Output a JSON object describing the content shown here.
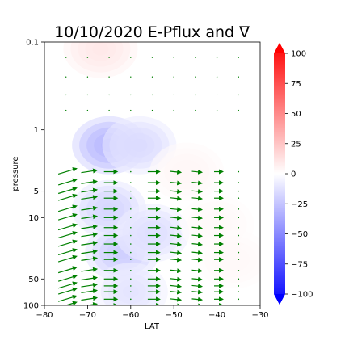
{
  "chart_data": {
    "type": "heatmap",
    "title": "10/10/2020 E-Pflux and ∇",
    "xlabel": "LAT",
    "ylabel": "pressure",
    "x_ticks": [
      -80,
      -70,
      -60,
      -50,
      -40,
      -30
    ],
    "y_ticks": [
      0.1,
      1,
      5,
      10,
      50,
      100
    ],
    "xlim": [
      -80,
      -30
    ],
    "ylim": [
      100,
      0.1
    ],
    "y_scale": "log",
    "colorbar": {
      "range": [
        -100,
        100
      ],
      "ticks": [
        100,
        75,
        50,
        25,
        0,
        -25,
        -50,
        -75,
        -100
      ],
      "colormap": "bwr",
      "low_color": "#0000ff",
      "mid_color": "#ffffff",
      "high_color": "#ff0000"
    },
    "contour_features": [
      {
        "lat": -65,
        "pressure": 1.5,
        "value": -80
      },
      {
        "lat": -62,
        "pressure": 25,
        "value": -55
      },
      {
        "lat": -65,
        "pressure": 8,
        "value": -45
      },
      {
        "lat": -58,
        "pressure": 1.5,
        "value": -40
      },
      {
        "lat": -55,
        "pressure": 15,
        "value": -35
      },
      {
        "lat": -60,
        "pressure": 70,
        "value": -30
      },
      {
        "lat": -67,
        "pressure": 0.12,
        "value": 25
      },
      {
        "lat": -47,
        "pressure": 3,
        "value": 10
      },
      {
        "lat": -40,
        "pressure": 12,
        "value": 8
      },
      {
        "lat": -36,
        "pressure": 30,
        "value": 8
      }
    ],
    "vector_field": {
      "color": "#008000",
      "lats": [
        -75,
        -70,
        -65,
        -60,
        -55,
        -50,
        -45,
        -40,
        -35
      ],
      "levels": [
        3,
        4,
        5,
        6,
        8,
        10,
        13,
        16,
        20,
        25,
        30,
        40,
        50,
        60,
        70,
        85,
        100
      ],
      "magnitude_by_lat": [
        1.0,
        0.75,
        0.55,
        0.1,
        0.45,
        0.4,
        0.3,
        0.2,
        0.05
      ],
      "slope_by_lat": [
        0.3,
        0.15,
        0.0,
        0.0,
        0.0,
        -0.1,
        -0.1,
        0.0,
        0.0
      ]
    }
  }
}
